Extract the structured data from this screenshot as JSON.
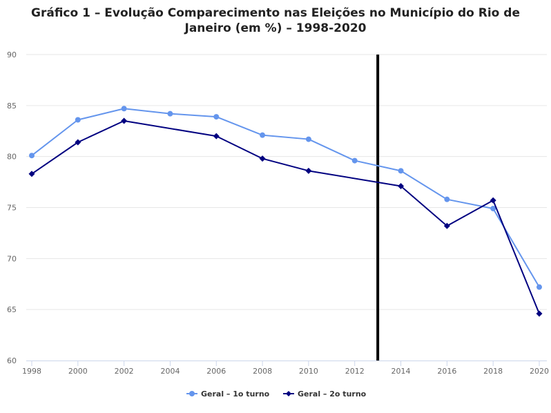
{
  "chart_data": {
    "type": "line",
    "title": "Gráfico 1 – Evolução Comparecimento nas Eleições no Município do Rio de Janeiro (em %) – 1998-2020",
    "xlabel": "",
    "ylabel": "",
    "x": [
      1998,
      2000,
      2002,
      2004,
      2006,
      2008,
      2010,
      2012,
      2014,
      2016,
      2018,
      2020
    ],
    "x_ticks": [
      "1998",
      "2000",
      "2002",
      "2004",
      "2006",
      "2008",
      "2010",
      "2012",
      "2014",
      "2016",
      "2018",
      "2020"
    ],
    "ylim": [
      60,
      90
    ],
    "y_ticks": [
      "60",
      "65",
      "70",
      "75",
      "80",
      "85",
      "90"
    ],
    "grid": true,
    "legend_position": "bottom",
    "reference_line": {
      "x": 2013,
      "color": "#000000"
    },
    "series": [
      {
        "name": "Geral – 1o turno",
        "color": "#6495ED",
        "marker": "circle",
        "points": [
          [
            1998,
            80.1
          ],
          [
            2000,
            83.6
          ],
          [
            2002,
            84.7
          ],
          [
            2004,
            84.2
          ],
          [
            2006,
            83.9
          ],
          [
            2008,
            82.1
          ],
          [
            2010,
            81.7
          ],
          [
            2012,
            79.6
          ],
          [
            2014,
            78.6
          ],
          [
            2016,
            75.8
          ],
          [
            2018,
            74.9
          ],
          [
            2020,
            67.2
          ]
        ]
      },
      {
        "name": "Geral – 2o turno",
        "color": "#000080",
        "marker": "diamond",
        "points": [
          [
            1998,
            78.3
          ],
          [
            2000,
            81.4
          ],
          [
            2002,
            83.5
          ],
          [
            2006,
            82.0
          ],
          [
            2008,
            79.8
          ],
          [
            2010,
            78.6
          ],
          [
            2014,
            77.1
          ],
          [
            2016,
            73.2
          ],
          [
            2018,
            75.7
          ],
          [
            2020,
            64.6
          ]
        ]
      }
    ]
  }
}
